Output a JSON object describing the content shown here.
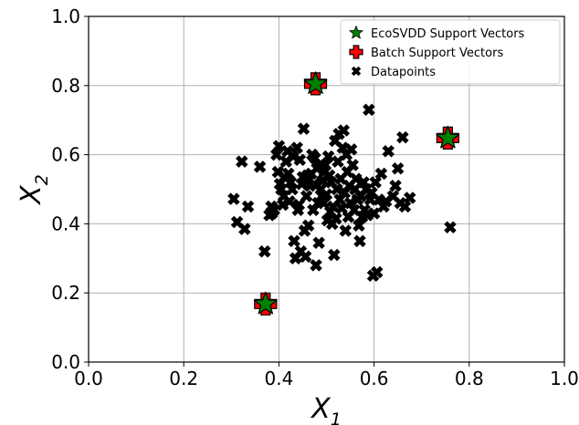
{
  "chart_data": {
    "type": "scatter",
    "title": "",
    "xlabel": "X",
    "xlabel_sub": "1",
    "ylabel": "X",
    "ylabel_sub": "2",
    "xlim": [
      0.0,
      1.0
    ],
    "ylim": [
      0.0,
      1.0
    ],
    "xticks": [
      "0.0",
      "0.2",
      "0.4",
      "0.6",
      "0.8",
      "1.0"
    ],
    "yticks": [
      "0.0",
      "0.2",
      "0.4",
      "0.6",
      "0.8",
      "1.0"
    ],
    "grid": true,
    "legend_position": "top-right",
    "series": [
      {
        "name": "EcoSVDD Support Vectors",
        "marker": "star",
        "color": "#008000",
        "points": [
          [
            0.372,
            0.168
          ],
          [
            0.477,
            0.805
          ],
          [
            0.755,
            0.648
          ]
        ]
      },
      {
        "name": "Batch Support Vectors",
        "marker": "plus",
        "color": "#ff0000",
        "points": [
          [
            0.372,
            0.168
          ],
          [
            0.477,
            0.805
          ],
          [
            0.755,
            0.648
          ]
        ]
      },
      {
        "name": "Datapoints",
        "marker": "x",
        "color": "#000000",
        "points": [
          [
            0.372,
            0.168
          ],
          [
            0.477,
            0.805
          ],
          [
            0.755,
            0.648
          ],
          [
            0.305,
            0.472
          ],
          [
            0.312,
            0.405
          ],
          [
            0.322,
            0.58
          ],
          [
            0.328,
            0.385
          ],
          [
            0.335,
            0.45
          ],
          [
            0.36,
            0.565
          ],
          [
            0.37,
            0.32
          ],
          [
            0.38,
            0.425
          ],
          [
            0.384,
            0.45
          ],
          [
            0.385,
            0.43
          ],
          [
            0.39,
            0.44
          ],
          [
            0.395,
            0.6
          ],
          [
            0.398,
            0.55
          ],
          [
            0.4,
            0.625
          ],
          [
            0.402,
            0.515
          ],
          [
            0.405,
            0.5
          ],
          [
            0.408,
            0.455
          ],
          [
            0.41,
            0.48
          ],
          [
            0.412,
            0.535
          ],
          [
            0.415,
            0.58
          ],
          [
            0.418,
            0.61
          ],
          [
            0.42,
            0.545
          ],
          [
            0.422,
            0.465
          ],
          [
            0.425,
            0.52
          ],
          [
            0.428,
            0.5
          ],
          [
            0.43,
            0.595
          ],
          [
            0.432,
            0.35
          ],
          [
            0.435,
            0.3
          ],
          [
            0.438,
            0.62
          ],
          [
            0.44,
            0.44
          ],
          [
            0.442,
            0.455
          ],
          [
            0.444,
            0.585
          ],
          [
            0.446,
            0.32
          ],
          [
            0.448,
            0.515
          ],
          [
            0.45,
            0.535
          ],
          [
            0.452,
            0.675
          ],
          [
            0.454,
            0.38
          ],
          [
            0.456,
            0.305
          ],
          [
            0.458,
            0.48
          ],
          [
            0.46,
            0.54
          ],
          [
            0.462,
            0.395
          ],
          [
            0.465,
            0.51
          ],
          [
            0.468,
            0.545
          ],
          [
            0.47,
            0.6
          ],
          [
            0.472,
            0.44
          ],
          [
            0.474,
            0.515
          ],
          [
            0.476,
            0.59
          ],
          [
            0.478,
            0.28
          ],
          [
            0.48,
            0.56
          ],
          [
            0.482,
            0.46
          ],
          [
            0.484,
            0.345
          ],
          [
            0.486,
            0.57
          ],
          [
            0.488,
            0.5
          ],
          [
            0.49,
            0.48
          ],
          [
            0.492,
            0.525
          ],
          [
            0.494,
            0.46
          ],
          [
            0.496,
            0.55
          ],
          [
            0.498,
            0.57
          ],
          [
            0.5,
            0.485
          ],
          [
            0.502,
            0.41
          ],
          [
            0.504,
            0.595
          ],
          [
            0.506,
            0.54
          ],
          [
            0.508,
            0.435
          ],
          [
            0.51,
            0.52
          ],
          [
            0.512,
            0.4
          ],
          [
            0.514,
            0.45
          ],
          [
            0.516,
            0.31
          ],
          [
            0.518,
            0.64
          ],
          [
            0.52,
            0.415
          ],
          [
            0.522,
            0.5
          ],
          [
            0.524,
            0.58
          ],
          [
            0.526,
            0.66
          ],
          [
            0.528,
            0.47
          ],
          [
            0.53,
            0.53
          ],
          [
            0.532,
            0.445
          ],
          [
            0.534,
            0.62
          ],
          [
            0.536,
            0.67
          ],
          [
            0.538,
            0.49
          ],
          [
            0.54,
            0.38
          ],
          [
            0.542,
            0.6
          ],
          [
            0.544,
            0.55
          ],
          [
            0.546,
            0.42
          ],
          [
            0.548,
            0.51
          ],
          [
            0.55,
            0.46
          ],
          [
            0.552,
            0.615
          ],
          [
            0.555,
            0.57
          ],
          [
            0.558,
            0.44
          ],
          [
            0.56,
            0.5
          ],
          [
            0.562,
            0.53
          ],
          [
            0.565,
            0.47
          ],
          [
            0.568,
            0.395
          ],
          [
            0.57,
            0.35
          ],
          [
            0.572,
            0.48
          ],
          [
            0.575,
            0.42
          ],
          [
            0.578,
            0.52
          ],
          [
            0.58,
            0.44
          ],
          [
            0.583,
            0.5
          ],
          [
            0.586,
            0.425
          ],
          [
            0.589,
            0.73
          ],
          [
            0.592,
            0.47
          ],
          [
            0.595,
            0.49
          ],
          [
            0.598,
            0.25
          ],
          [
            0.6,
            0.43
          ],
          [
            0.603,
            0.52
          ],
          [
            0.606,
            0.26
          ],
          [
            0.61,
            0.47
          ],
          [
            0.615,
            0.545
          ],
          [
            0.62,
            0.45
          ],
          [
            0.625,
            0.465
          ],
          [
            0.63,
            0.61
          ],
          [
            0.64,
            0.48
          ],
          [
            0.645,
            0.51
          ],
          [
            0.65,
            0.56
          ],
          [
            0.655,
            0.46
          ],
          [
            0.66,
            0.65
          ],
          [
            0.665,
            0.45
          ],
          [
            0.675,
            0.475
          ],
          [
            0.76,
            0.39
          ]
        ]
      }
    ]
  }
}
